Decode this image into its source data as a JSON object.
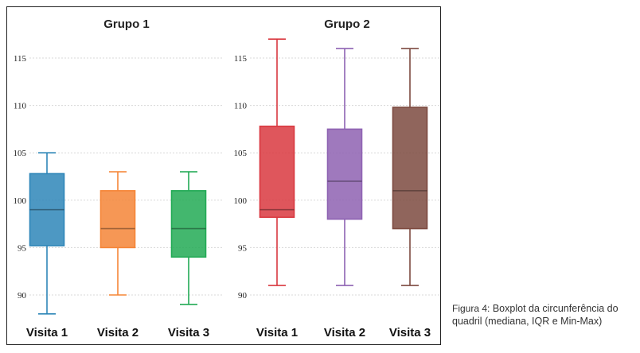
{
  "chart_data": [
    {
      "type": "boxplot",
      "title": "Grupo 1",
      "yticks": [
        90,
        95,
        100,
        105,
        110,
        115
      ],
      "ylim": [
        88,
        118
      ],
      "grid": true,
      "categories": [
        "Visita 1",
        "Visita 2",
        "Visita 3"
      ],
      "boxes": [
        {
          "category": "Visita 1",
          "min": 88,
          "q1": 95.2,
          "median": 99,
          "q3": 102.8,
          "max": 105,
          "color": "#2e86b8"
        },
        {
          "category": "Visita 2",
          "min": 90,
          "q1": 95,
          "median": 97,
          "q3": 101,
          "max": 103,
          "color": "#f58537"
        },
        {
          "category": "Visita 3",
          "min": 89,
          "q1": 94,
          "median": 97,
          "q3": 101,
          "max": 103,
          "color": "#22aa55"
        }
      ]
    },
    {
      "type": "boxplot",
      "title": "Grupo 2",
      "yticks": [
        90,
        95,
        100,
        105,
        110,
        115
      ],
      "ylim": [
        88,
        118
      ],
      "grid": true,
      "categories": [
        "Visita 1",
        "Visita 2",
        "Visita 3"
      ],
      "boxes": [
        {
          "category": "Visita 1",
          "min": 91,
          "q1": 98.2,
          "median": 99,
          "q3": 107.8,
          "max": 117,
          "color": "#d9383f"
        },
        {
          "category": "Visita 2",
          "min": 91,
          "q1": 98,
          "median": 102,
          "q3": 107.5,
          "max": 116,
          "color": "#8e62b2"
        },
        {
          "category": "Visita 3",
          "min": 91,
          "q1": 97,
          "median": 101,
          "q3": 109.8,
          "max": 116,
          "color": "#7d4a40"
        }
      ]
    }
  ],
  "caption": {
    "label": "Figura 4:",
    "text": "Boxplot da circunferência do quadril (mediana, IQR e Min-Max)"
  }
}
